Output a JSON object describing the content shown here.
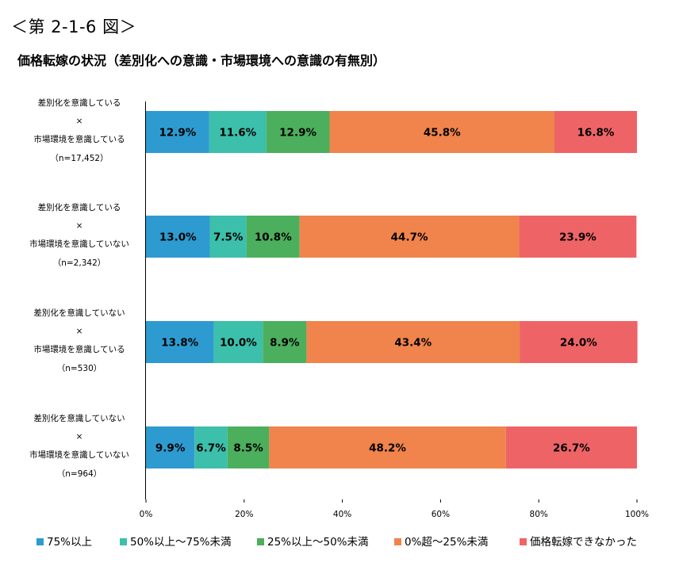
{
  "figure_label": "＜第 2-1-6 図＞",
  "chart_data": {
    "type": "bar",
    "orientation": "horizontal",
    "stacked": true,
    "title": "価格転嫁の状況（差別化への意識・市場環境への意識の有無別）",
    "categories": [
      [
        "差別化を意識している",
        "×",
        "市場環境を意識している",
        "（n=17,452）"
      ],
      [
        "差別化を意識している",
        "×",
        "市場環境を意識していない",
        "（n=2,342）"
      ],
      [
        "差別化を意識していない",
        "×",
        "市場環境を意識している",
        "（n=530）"
      ],
      [
        "差別化を意識していない",
        "×",
        "市場環境を意識していない",
        "（n=964）"
      ]
    ],
    "series": [
      {
        "name": "75%以上",
        "color": "#2e9bd0",
        "values": [
          12.9,
          13.0,
          13.8,
          9.9
        ]
      },
      {
        "name": "50%以上～75%未満",
        "color": "#3cbfab",
        "values": [
          11.6,
          7.5,
          10.0,
          6.7
        ]
      },
      {
        "name": "25%以上～50%未満",
        "color": "#4caf5d",
        "values": [
          12.9,
          10.8,
          8.9,
          8.5
        ]
      },
      {
        "name": "0%超～25%未満",
        "color": "#f0844c",
        "values": [
          45.8,
          44.7,
          43.4,
          48.2
        ]
      },
      {
        "name": "価格転嫁できなかった",
        "color": "#ee6466",
        "values": [
          16.8,
          23.9,
          24.0,
          26.7
        ]
      }
    ],
    "value_suffix": "%",
    "xlim": [
      0,
      100
    ],
    "xticks": [
      "0%",
      "20%",
      "40%",
      "60%",
      "80%",
      "100%"
    ],
    "legend_position": "bottom",
    "grid": false
  }
}
